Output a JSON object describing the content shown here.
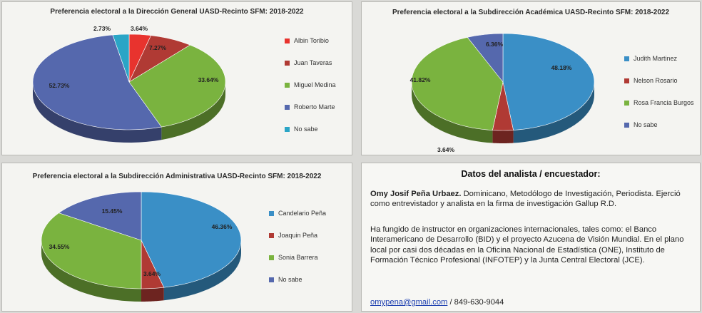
{
  "chart_data": [
    {
      "type": "pie",
      "title": "Preferencia electoral a la Dirección General UASD-Recinto SFM: 2018-2022",
      "categories": [
        "Albin Toribio",
        "Juan Taveras",
        "Miguel Medina",
        "Roberto Marte",
        "No sabe"
      ],
      "values": [
        3.64,
        7.27,
        33.64,
        52.73,
        2.73
      ],
      "labels": [
        "3.64%",
        "7.27%",
        "33.64%",
        "52.73%",
        "2.73%"
      ],
      "colors": [
        "#e8332e",
        "#b03a34",
        "#7ab33f",
        "#5568ad",
        "#2aa5c6"
      ],
      "legend_position": "right"
    },
    {
      "type": "pie",
      "title": "Preferencia electoral a la Subdirección Académica UASD-Recinto SFM: 2018-2022",
      "categories": [
        "Judith Martinez",
        "Nelson Rosario",
        "Rosa Francia Burgos",
        "No sabe"
      ],
      "values": [
        48.18,
        3.64,
        41.82,
        6.36
      ],
      "labels": [
        "48.18%",
        "3.64%",
        "41.82%",
        "6.36%"
      ],
      "colors": [
        "#3a8fc6",
        "#b03a34",
        "#7ab33f",
        "#5568ad"
      ],
      "legend_position": "right"
    },
    {
      "type": "pie",
      "title": "Preferencia electoral a la Subdirección Administrativa UASD-Recinto SFM: 2018-2022",
      "categories": [
        "Candelario Peña",
        "Joaquin Peña",
        "Sonia Barrera",
        "No sabe"
      ],
      "values": [
        46.36,
        3.64,
        34.55,
        15.45
      ],
      "labels": [
        "46.36%",
        "3.64%",
        "34.55%",
        "15.45%"
      ],
      "colors": [
        "#3a8fc6",
        "#b03a34",
        "#7ab33f",
        "#5568ad"
      ],
      "legend_position": "right"
    }
  ],
  "analyst": {
    "title": "Datos del analista / encuestador:",
    "name": "Omy Josif Peña Urbaez.",
    "bio1": " Dominicano, Metodólogo de Investigación, Periodista. Ejerció como entrevistador y analista en la firma de investigación Gallup R.D.",
    "bio2": "Ha fungido de instructor en organizaciones internacionales, tales como: el Banco Interamericano de Desarrollo (BID) y el proyecto Azucena de Visión Mundial. En el plano local por casi dos décadas en la Oficina Nacional de Estadística (ONE), Instituto de Formación Técnico Profesional (INFOTEP) y la Junta Central Electoral (JCE).",
    "email": "omypena@gmail.com",
    "phone": " / 849-630-9044"
  }
}
